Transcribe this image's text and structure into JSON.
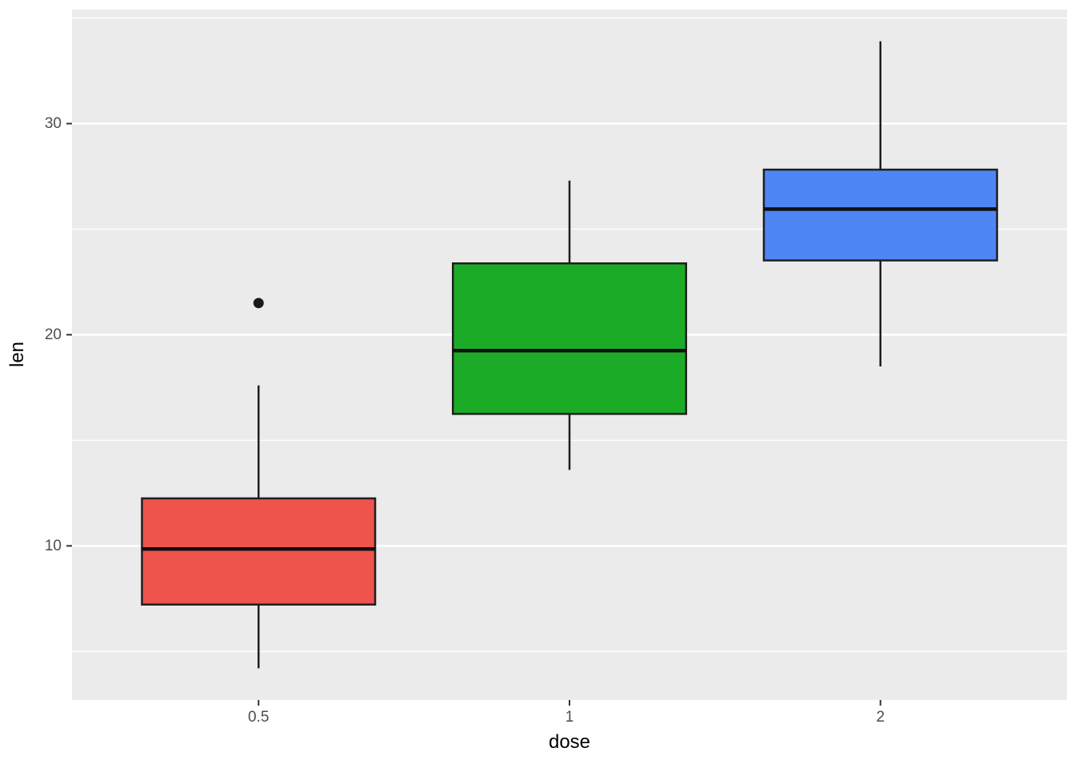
{
  "figure": {
    "background": "#FFFFFF"
  },
  "chart_data": {
    "type": "boxplot",
    "title": "",
    "xlabel": "dose",
    "ylabel": "len",
    "categories": [
      "0.5",
      "1",
      "2"
    ],
    "ylim": [
      2.7,
      35.4
    ],
    "yticks_major": [
      10,
      20,
      30
    ],
    "yticks_minor": [
      5,
      15,
      25,
      35
    ],
    "grid": true,
    "legend": "none",
    "series": [
      {
        "category": "0.5",
        "color": "#EE544C",
        "whisker_low": 4.2,
        "q1": 7.22,
        "median": 9.85,
        "q3": 12.25,
        "whisker_high": 17.6,
        "outliers": [
          21.5
        ]
      },
      {
        "category": "1",
        "color": "#1CAB27",
        "whisker_low": 13.6,
        "q1": 16.25,
        "median": 19.25,
        "q3": 23.38,
        "whisker_high": 27.3,
        "outliers": []
      },
      {
        "category": "2",
        "color": "#4E86F4",
        "whisker_low": 18.5,
        "q1": 23.52,
        "median": 25.95,
        "q3": 27.82,
        "whisker_high": 33.9,
        "outliers": []
      }
    ],
    "style": {
      "panel_bg": "#EBEBEB",
      "grid_color": "#FFFFFF",
      "tick_color": "#333333",
      "tick_label_color": "#4D4D4D",
      "axis_title_color": "#000000",
      "box_border": "#1F1F1F",
      "median_color": "#111111",
      "outlier_color": "#1A1A1A"
    }
  }
}
